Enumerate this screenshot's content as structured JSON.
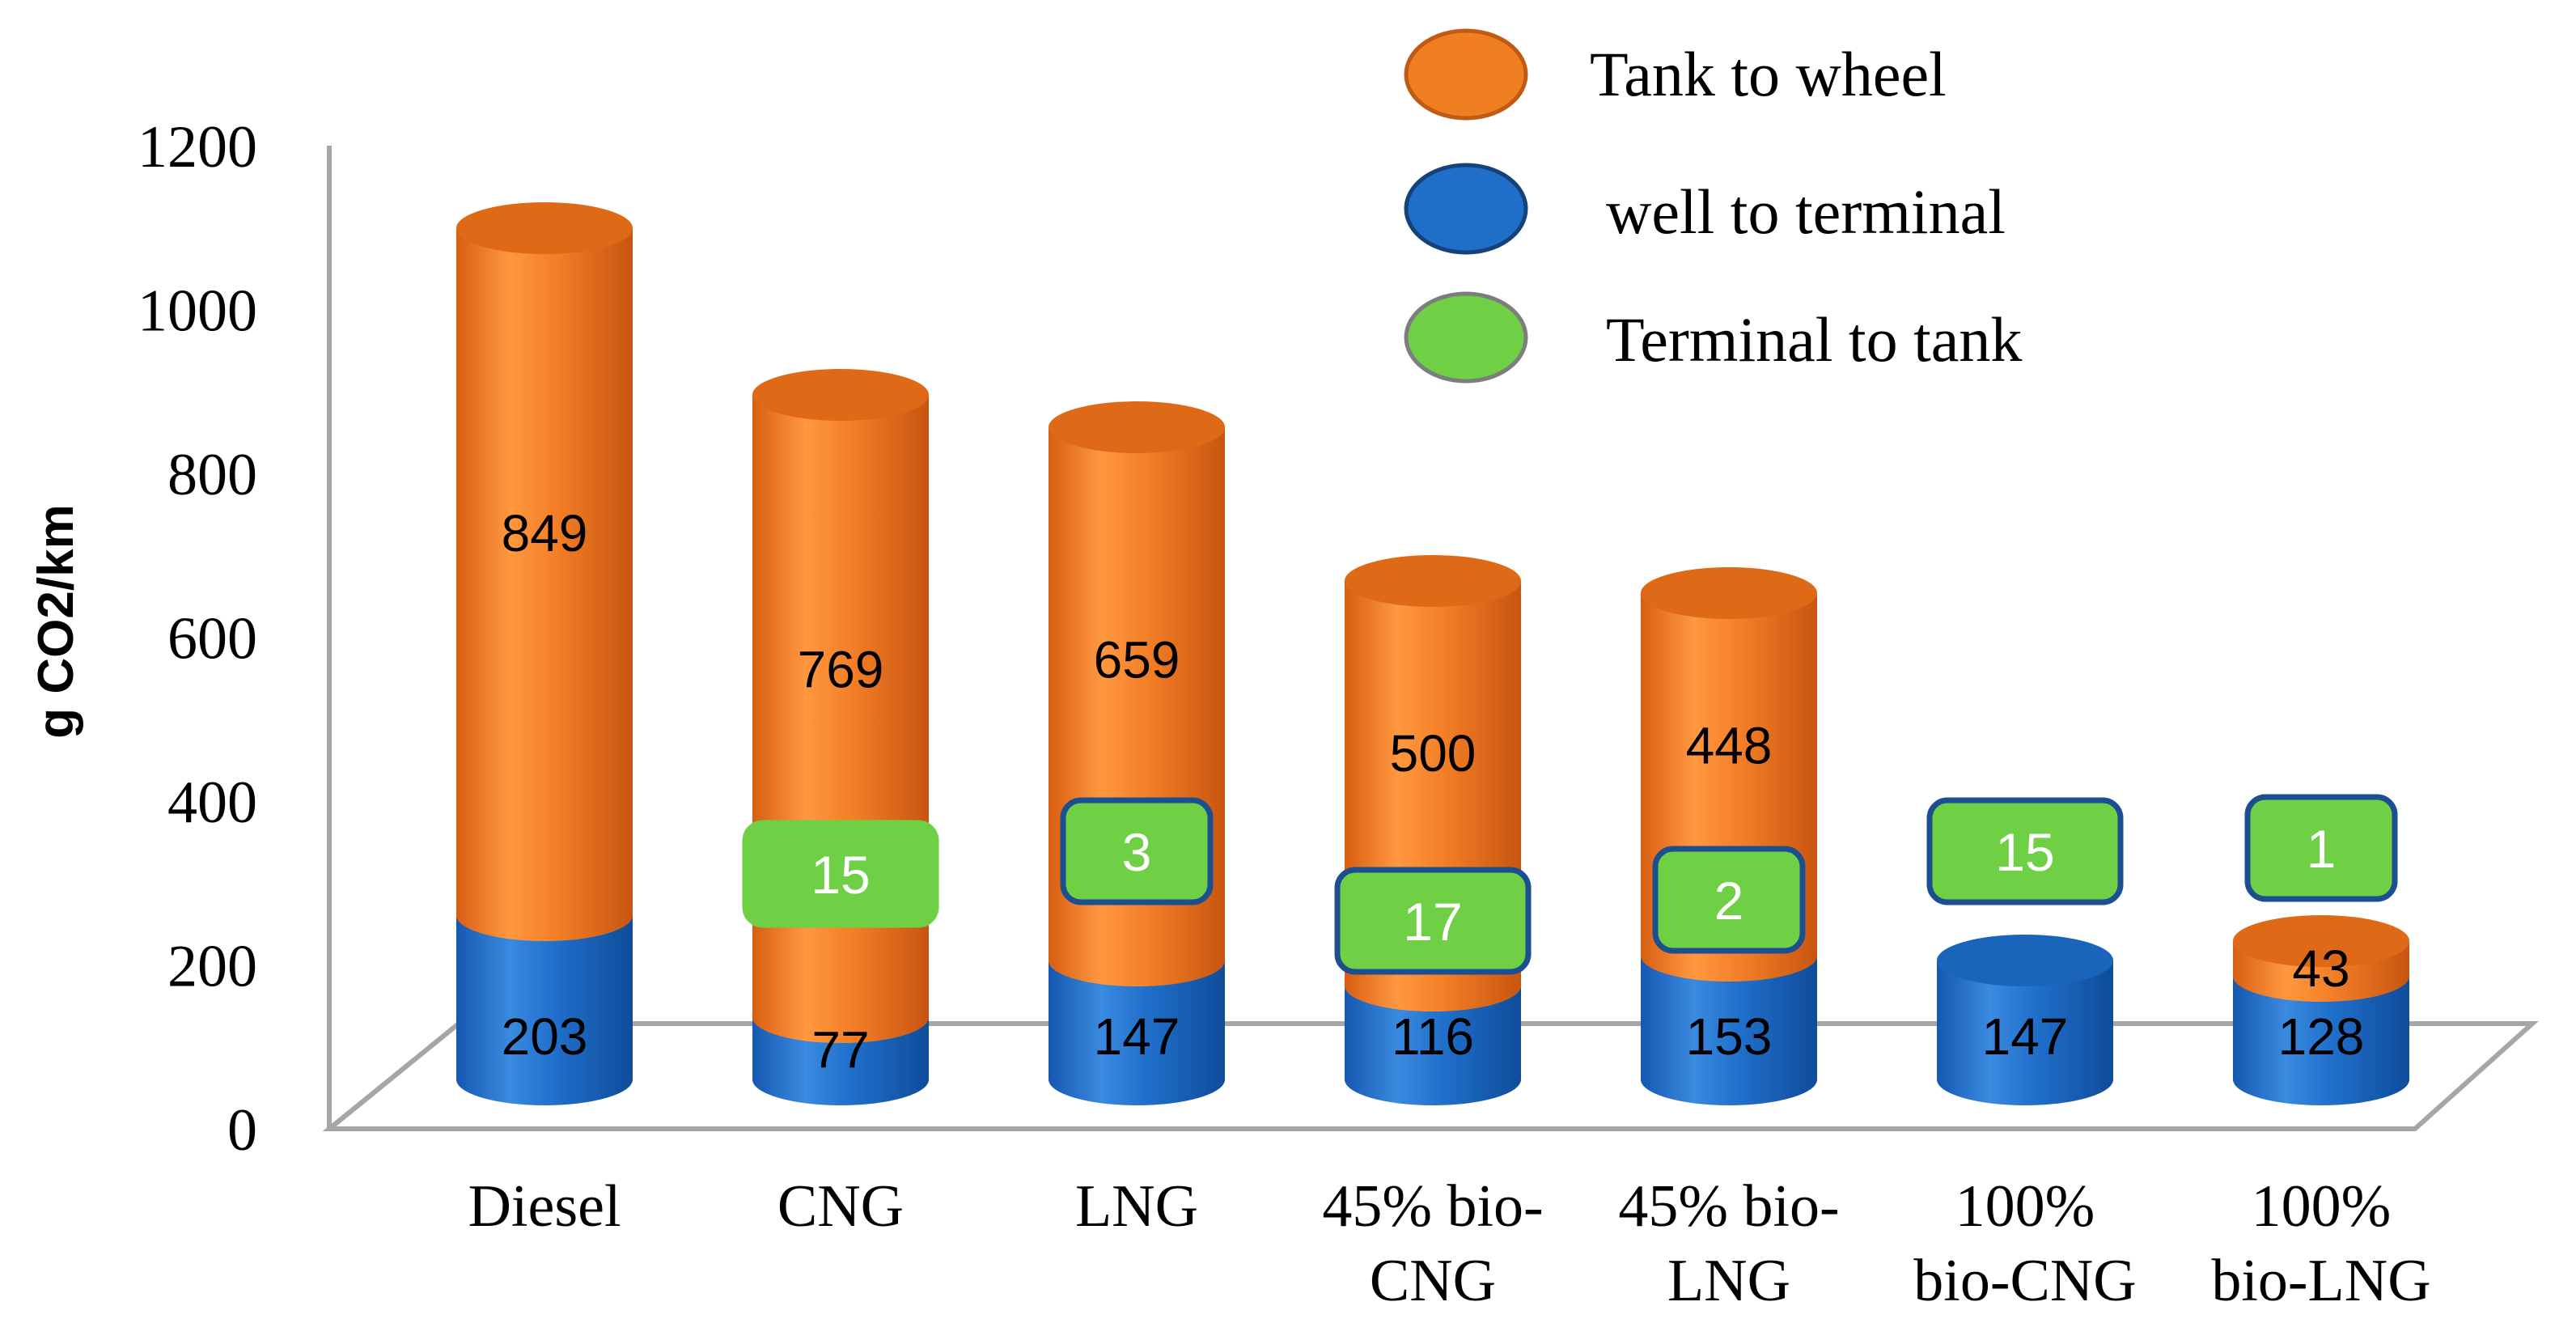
{
  "chart_data": {
    "type": "bar",
    "stacked": true,
    "title": "",
    "ylabel": "g CO2/km",
    "xlabel": "",
    "ylim": [
      0,
      1200
    ],
    "yticks": [
      0,
      200,
      400,
      600,
      800,
      1000,
      1200
    ],
    "categories": [
      [
        "Diesel"
      ],
      [
        "CNG"
      ],
      [
        "LNG"
      ],
      [
        "45% bio-",
        "CNG"
      ],
      [
        "45% bio-",
        "LNG"
      ],
      [
        "100%",
        "bio-CNG"
      ],
      [
        "100%",
        "bio-LNG"
      ]
    ],
    "series": [
      {
        "name": "well to terminal",
        "color": "#1f6fc9",
        "values": [
          203,
          77,
          147,
          116,
          153,
          147,
          128
        ]
      },
      {
        "name": "Tank to wheel",
        "color": "#f07f21",
        "values": [
          849,
          769,
          659,
          500,
          448,
          0,
          43
        ]
      },
      {
        "name": "Terminal to tank",
        "color": "#6fcf45",
        "values": [
          null,
          15,
          3,
          17,
          2,
          15,
          1
        ]
      }
    ],
    "legend": {
      "position": "top-right",
      "items": [
        {
          "label": "Tank to wheel",
          "color": "#f07f21"
        },
        {
          "label": "well to terminal",
          "color": "#1f6fc9"
        },
        {
          "label": "Terminal to tank",
          "color": "#6fcf45"
        }
      ]
    }
  }
}
